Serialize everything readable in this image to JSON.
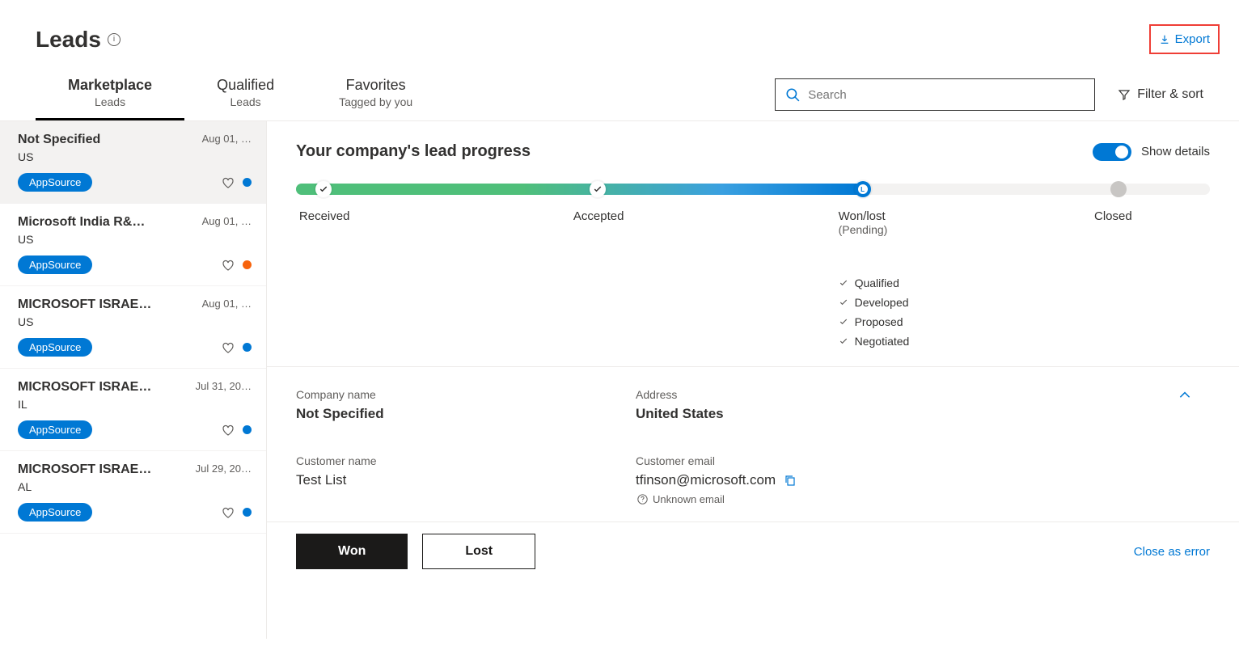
{
  "header": {
    "title": "Leads",
    "export_label": "Export"
  },
  "tabs": [
    {
      "label": "Marketplace",
      "sub": "Leads",
      "active": true
    },
    {
      "label": "Qualified",
      "sub": "Leads",
      "active": false
    },
    {
      "label": "Favorites",
      "sub": "Tagged by you",
      "active": false
    }
  ],
  "search": {
    "placeholder": "Search"
  },
  "filter_sort_label": "Filter & sort",
  "leads": [
    {
      "name": "Not Specified",
      "date": "Aug 01, …",
      "loc": "US",
      "tag": "AppSource",
      "dot": "#0078d4",
      "selected": true
    },
    {
      "name": "Microsoft India R&…",
      "date": "Aug 01, …",
      "loc": "US",
      "tag": "AppSource",
      "dot": "#f7630c",
      "selected": false
    },
    {
      "name": "MICROSOFT ISRAE…",
      "date": "Aug 01, …",
      "loc": "US",
      "tag": "AppSource",
      "dot": "#0078d4",
      "selected": false
    },
    {
      "name": "MICROSOFT ISRAE…",
      "date": "Jul 31, 20…",
      "loc": "IL",
      "tag": "AppSource",
      "dot": "#0078d4",
      "selected": false
    },
    {
      "name": "MICROSOFT ISRAE…",
      "date": "Jul 29, 20…",
      "loc": "AL",
      "tag": "AppSource",
      "dot": "#0078d4",
      "selected": false
    }
  ],
  "progress": {
    "title": "Your company's lead progress",
    "show_details_label": "Show details",
    "show_details_on": true,
    "stages": [
      {
        "label": "Received",
        "pos_pct": 3,
        "done": true,
        "active": false
      },
      {
        "label": "Accepted",
        "pos_pct": 33,
        "done": true,
        "active": false
      },
      {
        "label": "Won/lost",
        "pos_pct": 62,
        "done": false,
        "active": true,
        "sub": "(Pending)"
      },
      {
        "label": "Closed",
        "pos_pct": 90,
        "done": false,
        "active": false
      }
    ],
    "bar": {
      "gradient_start": "#4fbf7a",
      "gradient_mid": "#3aa0e0",
      "gradient_end": "#0078d4",
      "fill_pct": 62,
      "track_color": "#f3f2f1",
      "grey_node_color": "#c8c6c4"
    },
    "sublist": [
      "Qualified",
      "Developed",
      "Proposed",
      "Negotiated"
    ]
  },
  "details": {
    "company_name_label": "Company name",
    "company_name": "Not Specified",
    "address_label": "Address",
    "address": "United States",
    "customer_name_label": "Customer name",
    "customer_name": "Test List",
    "customer_email_label": "Customer email",
    "customer_email": "tfinson@microsoft.com",
    "unknown_email_label": "Unknown email"
  },
  "actions": {
    "won_label": "Won",
    "lost_label": "Lost",
    "close_error_label": "Close as error"
  }
}
